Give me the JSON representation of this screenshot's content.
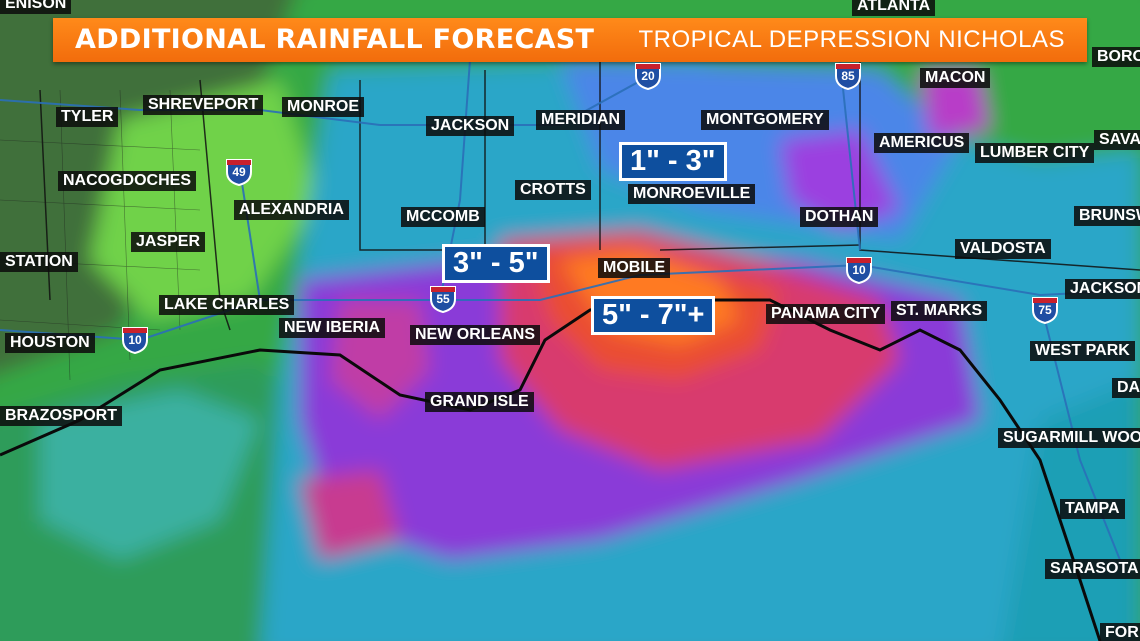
{
  "header": {
    "title": "Additional Rainfall Forecast",
    "subtitle": "Tropical Depression Nicholas"
  },
  "rainfall_bands": [
    {
      "label": "1\" - 3\"",
      "color": "#00bfe8"
    },
    {
      "label": "3\" - 5\"",
      "color": "#9b2bd6"
    },
    {
      "label": "5\" - 7\"+",
      "color": "#e8452a"
    }
  ],
  "cities": {
    "atlanta": "ATLANTA",
    "denison": "ENISON",
    "boro": "BORO",
    "macon": "MACON",
    "tyler": "TYLER",
    "shreveport": "SHREVEPORT",
    "monroe": "MONROE",
    "jackson_ms": "JACKSON",
    "meridian": "MERIDIAN",
    "montgomery": "MONTGOMERY",
    "americus": "AMERICUS",
    "lumber_city": "LUMBER CITY",
    "savannah": "SAVA",
    "nacogdoches": "NACOGDOCHES",
    "alexandria": "ALEXANDRIA",
    "crotts": "CROTTS",
    "monroeville": "MONROEVILLE",
    "mccomb": "MCCOMB",
    "dothan": "DOTHAN",
    "brunswick": "BRUNSW",
    "jasper": "JASPER",
    "valdosta": "VALDOSTA",
    "station": "STATION",
    "mobile": "MOBILE",
    "jacksonville": "JACKSON",
    "lake_charles": "LAKE CHARLES",
    "panama_city": "PANAMA CITY",
    "st_marks": "ST. MARKS",
    "new_iberia": "NEW IBERIA",
    "new_orleans": "NEW ORLEANS",
    "houston": "HOUSTON",
    "west_park": "WEST PARK",
    "daytona": "DA",
    "grand_isle": "GRAND ISLE",
    "brazosport": "BRAZOSPORT",
    "sugarmill": "SUGARMILL WOO",
    "tampa": "TAMPA",
    "sarasota": "SARASOTA",
    "fort": "FOR"
  },
  "interstates": {
    "i20": "20",
    "i85": "85",
    "i49": "49",
    "i55": "55",
    "i10_west": "10",
    "i10_east": "10",
    "i75": "75"
  }
}
